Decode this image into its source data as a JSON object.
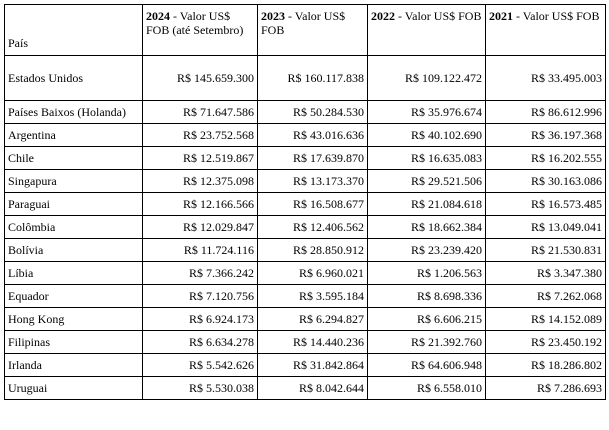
{
  "table": {
    "headers": [
      {
        "label": "País"
      },
      {
        "year": "2024",
        "rest": " - Valor US$ FOB (até Setembro)"
      },
      {
        "year": "2023",
        "rest": " - Valor US$ FOB"
      },
      {
        "year": "2022",
        "rest": " - Valor US$ FOB"
      },
      {
        "year": "2021",
        "rest": " - Valor US$ FOB"
      }
    ],
    "rows": [
      [
        "Estados Unidos",
        "R$ 145.659.300",
        "R$ 160.117.838",
        "R$ 109.122.472",
        "R$ 33.495.003"
      ],
      [
        "Países Baixos (Holanda)",
        "R$ 71.647.586",
        "R$ 50.284.530",
        "R$ 35.976.674",
        "R$ 86.612.996"
      ],
      [
        "Argentina",
        "R$ 23.752.568",
        "R$ 43.016.636",
        "R$ 40.102.690",
        "R$ 36.197.368"
      ],
      [
        "Chile",
        "R$ 12.519.867",
        "R$ 17.639.870",
        "R$ 16.635.083",
        "R$ 16.202.555"
      ],
      [
        "Singapura",
        "R$ 12.375.098",
        "R$ 13.173.370",
        "R$ 29.521.506",
        "R$ 30.163.086"
      ],
      [
        "Paraguai",
        "R$ 12.166.566",
        "R$ 16.508.677",
        "R$ 21.084.618",
        "R$ 16.573.485"
      ],
      [
        "Colômbia",
        "R$ 12.029.847",
        "R$ 12.406.562",
        "R$ 18.662.384",
        "R$ 13.049.041"
      ],
      [
        "Bolívia",
        "R$ 11.724.116",
        "R$ 28.850.912",
        "R$ 23.239.420",
        "R$ 21.530.831"
      ],
      [
        "Líbia",
        "R$ 7.366.242",
        "R$ 6.960.021",
        "R$ 1.206.563",
        "R$ 3.347.380"
      ],
      [
        "Equador",
        "R$ 7.120.756",
        "R$ 3.595.184",
        "R$ 8.698.336",
        "R$ 7.262.068"
      ],
      [
        "Hong Kong",
        "R$ 6.924.173",
        "R$ 6.294.827",
        "R$ 6.606.215",
        "R$ 14.152.089"
      ],
      [
        "Filipinas",
        "R$ 6.634.278",
        "R$ 14.440.236",
        "R$ 21.392.760",
        "R$ 23.450.192"
      ],
      [
        "Irlanda",
        "R$ 5.542.626",
        "R$ 31.842.864",
        "R$ 64.606.948",
        "R$ 18.286.802"
      ],
      [
        "Uruguai",
        "R$ 5.530.038",
        "R$ 8.042.644",
        "R$ 6.558.010",
        "R$ 7.286.693"
      ]
    ]
  }
}
